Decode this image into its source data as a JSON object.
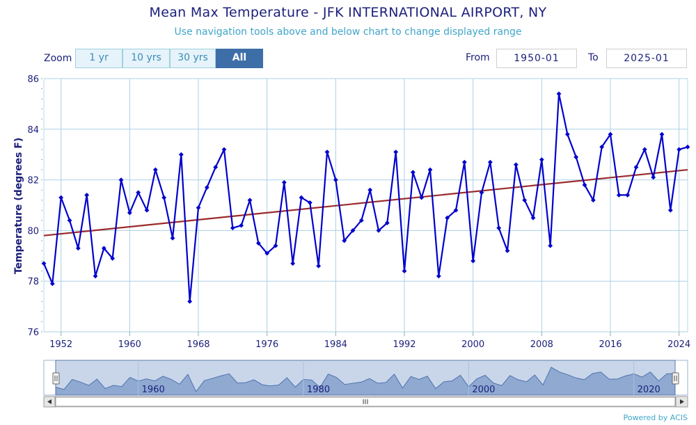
{
  "title": "Mean Max Temperature - JFK INTERNATIONAL AIRPORT, NY",
  "subtitle": "Use navigation tools above and below chart to change displayed range",
  "zoom": {
    "label": "Zoom",
    "buttons": [
      "1 yr",
      "10 yrs",
      "30 yrs",
      "All"
    ],
    "active": "All"
  },
  "range": {
    "from_label": "From",
    "from_value": "1950-01",
    "to_label": "To",
    "to_value": "2025-01"
  },
  "credit": "Powered by ACIS",
  "navigator": {
    "labels": [
      "1960",
      "1980",
      "2000",
      "2020"
    ],
    "scroll_grip": "III"
  },
  "colors": {
    "series": "#0000cc",
    "trend": "#9b2a2a",
    "grid": "#a9d0e6",
    "axis_text": "#1a1f7a",
    "navigator_fill": "#8fa9d1"
  },
  "chart_data": {
    "type": "line",
    "title": "Mean Max Temperature - JFK INTERNATIONAL AIRPORT, NY",
    "ylabel": "Temperature (degrees F)",
    "xlabel": "",
    "ylim": [
      76,
      86
    ],
    "xlim": [
      1950,
      2025
    ],
    "yticks": [
      76,
      78,
      80,
      82,
      84,
      86
    ],
    "xticks": [
      1952,
      1960,
      1968,
      1976,
      1984,
      1992,
      2000,
      2008,
      2016,
      2024
    ],
    "grid": true,
    "series": [
      {
        "x": [
          1950,
          1951,
          1952,
          1953,
          1954,
          1955,
          1956,
          1957,
          1958,
          1959,
          1960,
          1961,
          1962,
          1963,
          1964,
          1965,
          1966,
          1967,
          1968,
          1969,
          1970,
          1971,
          1972,
          1973,
          1974,
          1975,
          1976,
          1977,
          1978,
          1979,
          1980,
          1981,
          1982,
          1983,
          1984,
          1985,
          1986,
          1987,
          1988,
          1989,
          1990,
          1991,
          1992,
          1993,
          1994,
          1995,
          1996,
          1997,
          1998,
          1999,
          2000,
          2001,
          2002,
          2003,
          2004,
          2005,
          2006,
          2007,
          2008,
          2009,
          2010,
          2011,
          2012,
          2013,
          2014,
          2015,
          2016,
          2017,
          2018,
          2019,
          2020,
          2021,
          2022,
          2023,
          2024,
          2025
        ],
        "values": [
          78.7,
          77.9,
          81.3,
          80.4,
          79.3,
          81.4,
          78.2,
          79.3,
          78.9,
          82.0,
          80.7,
          81.5,
          80.8,
          82.4,
          81.3,
          79.7,
          83.0,
          77.2,
          80.9,
          81.7,
          82.5,
          83.2,
          80.1,
          80.2,
          81.2,
          79.5,
          79.1,
          79.4,
          81.9,
          78.7,
          81.3,
          81.1,
          78.6,
          83.1,
          82.0,
          79.6,
          80.0,
          80.4,
          81.6,
          80.0,
          80.3,
          83.1,
          78.4,
          82.3,
          81.3,
          82.4,
          78.2,
          80.5,
          80.8,
          82.7,
          78.8,
          81.5,
          82.7,
          80.1,
          79.2,
          82.6,
          81.2,
          80.5,
          82.8,
          79.4,
          85.4,
          83.8,
          82.9,
          81.8,
          81.2,
          83.3,
          83.8,
          81.4,
          81.4,
          82.5,
          83.2,
          82.1,
          83.8,
          80.8,
          83.2,
          83.3
        ]
      },
      {
        "x": [
          1950,
          2025
        ],
        "values": [
          79.8,
          82.4
        ]
      }
    ]
  }
}
